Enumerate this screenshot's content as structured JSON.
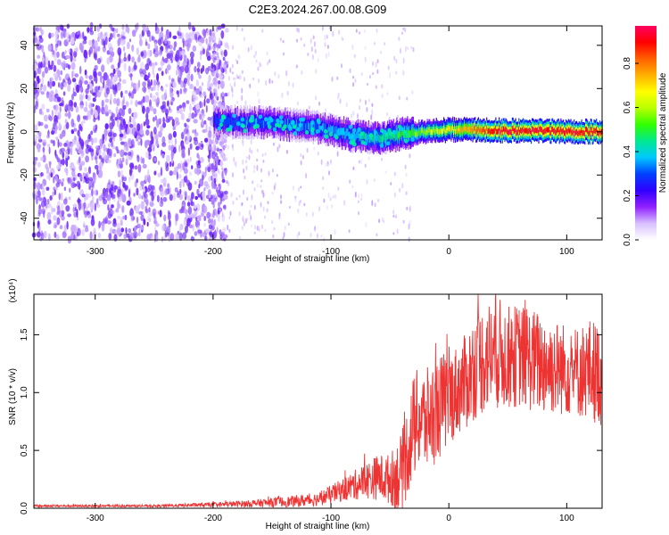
{
  "title": "C2E3.2024.267.00.08.G09",
  "chart_data": [
    {
      "type": "heatmap",
      "name": "spectrogram",
      "xlabel": "Height of straight line (km)",
      "ylabel": "Frequency (Hz)",
      "xlim": [
        -352,
        130
      ],
      "ylim": [
        -50,
        49
      ],
      "xticks": [
        -300,
        -200,
        -100,
        0,
        100
      ],
      "yticks": [
        -40,
        -20,
        0,
        20,
        40
      ],
      "colorbar": {
        "label": "Normalized spectral amplitude",
        "range": [
          0.0,
          0.97
        ],
        "ticks": [
          0.0,
          0.2,
          0.4,
          0.6,
          0.8
        ],
        "colors": [
          "#ffffff",
          "#d8c0ff",
          "#9020ff",
          "#3000ff",
          "#0040ff",
          "#00c8ff",
          "#00e890",
          "#30ff00",
          "#b8ff00",
          "#ffff00",
          "#ffb000",
          "#ff6000",
          "#ff0000",
          "#ff0060"
        ]
      },
      "signal_band": {
        "description": "noise at low heights (below -200 km), coherent signal near 0 Hz above -200 km",
        "x_start": -200,
        "center_frequency": [
          {
            "x": -200,
            "f": 5
          },
          {
            "x": -150,
            "f": 4
          },
          {
            "x": -110,
            "f": 2
          },
          {
            "x": -80,
            "f": -2
          },
          {
            "x": -60,
            "f": -3
          },
          {
            "x": -40,
            "f": -1
          },
          {
            "x": -20,
            "f": 0
          },
          {
            "x": 0,
            "f": 1
          },
          {
            "x": 130,
            "f": 0
          }
        ],
        "peak_amplitude": [
          {
            "x": -200,
            "a": 0.3
          },
          {
            "x": -100,
            "a": 0.35
          },
          {
            "x": -40,
            "a": 0.5
          },
          {
            "x": 0,
            "a": 0.7
          },
          {
            "x": 40,
            "a": 0.95
          },
          {
            "x": 130,
            "a": 0.95
          }
        ]
      }
    },
    {
      "type": "line",
      "name": "snr",
      "xlabel": "Height of straight line (km)",
      "ylabel": "SNR (10 * v/v)",
      "multiplier": "(x10⁴)",
      "xlim": [
        -352,
        130
      ],
      "ylim": [
        0.0,
        1.85
      ],
      "xticks": [
        -300,
        -200,
        -100,
        0,
        100
      ],
      "yticks": [
        0.0,
        0.5,
        1.0,
        1.5
      ],
      "color": "#ee3333",
      "series": [
        {
          "name": "SNR",
          "x": [
            -352,
            -300,
            -250,
            -200,
            -170,
            -150,
            -130,
            -110,
            -100,
            -90,
            -80,
            -70,
            -60,
            -50,
            -40,
            -35,
            -30,
            -25,
            -20,
            -15,
            -10,
            -5,
            0,
            5,
            10,
            15,
            20,
            30,
            40,
            50,
            60,
            70,
            80,
            90,
            100,
            110,
            120,
            130
          ],
          "values": [
            0.02,
            0.02,
            0.02,
            0.03,
            0.04,
            0.05,
            0.06,
            0.08,
            0.12,
            0.16,
            0.2,
            0.24,
            0.27,
            0.25,
            0.3,
            0.5,
            0.7,
            0.78,
            0.75,
            0.8,
            0.85,
            0.9,
            0.95,
            1.0,
            1.05,
            1.1,
            1.2,
            1.3,
            1.35,
            1.3,
            1.32,
            1.28,
            1.25,
            1.22,
            1.2,
            1.18,
            1.2,
            1.15
          ],
          "spread": [
            0.01,
            0.01,
            0.01,
            0.02,
            0.03,
            0.04,
            0.05,
            0.06,
            0.08,
            0.1,
            0.13,
            0.16,
            0.2,
            0.22,
            0.35,
            0.4,
            0.45,
            0.45,
            0.45,
            0.45,
            0.45,
            0.45,
            0.4,
            0.4,
            0.4,
            0.42,
            0.45,
            0.48,
            0.5,
            0.45,
            0.45,
            0.45,
            0.45,
            0.42,
            0.4,
            0.4,
            0.45,
            0.45
          ]
        }
      ]
    }
  ]
}
